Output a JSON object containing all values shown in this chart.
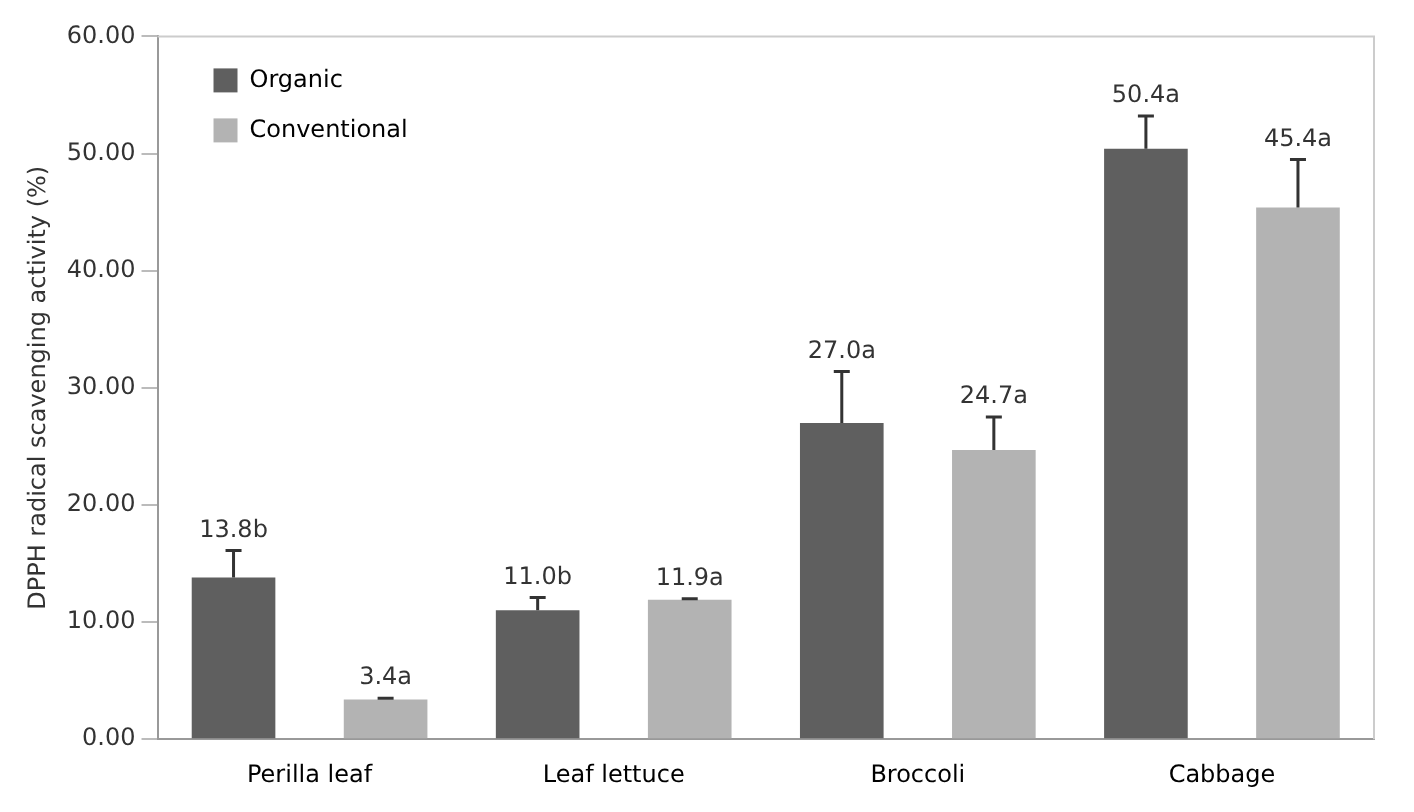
{
  "chart_data": {
    "type": "bar",
    "ylabel": "DPPH radical scavenging activity (%)",
    "categories": [
      "Perilla leaf",
      "Leaf lettuce",
      "Broccoli",
      "Cabbage"
    ],
    "series": [
      {
        "name": "Organic",
        "color": "#5f5f5f",
        "values": [
          13.8,
          11.0,
          27.0,
          50.4
        ],
        "errors": [
          [
            13.8,
            16.1
          ],
          [
            11.0,
            12.1
          ],
          [
            27.0,
            31.4
          ],
          [
            50.4,
            53.2
          ]
        ],
        "value_labels": [
          "13.8b",
          "11.0b",
          "27.0a",
          "50.4a"
        ]
      },
      {
        "name": "Conventional",
        "color": "#b3b3b3",
        "values": [
          3.4,
          11.9,
          24.7,
          45.4
        ],
        "errors": [
          [
            3.4,
            3.5
          ],
          [
            11.9,
            12.0
          ],
          [
            24.7,
            27.5
          ],
          [
            45.4,
            49.5
          ]
        ],
        "value_labels": [
          "3.4a",
          "11.9a",
          "24.7a",
          "45.4a"
        ]
      }
    ],
    "ylim": [
      0,
      60
    ],
    "yticks": [
      {
        "value": 0,
        "label": "0.00"
      },
      {
        "value": 10,
        "label": "10.00"
      },
      {
        "value": 20,
        "label": "20.00"
      },
      {
        "value": 30,
        "label": "30.00"
      },
      {
        "value": 40,
        "label": "40.00"
      },
      {
        "value": 50,
        "label": "50.00"
      },
      {
        "value": 60,
        "label": "60.00"
      }
    ],
    "grid": false,
    "legend": "top left"
  }
}
